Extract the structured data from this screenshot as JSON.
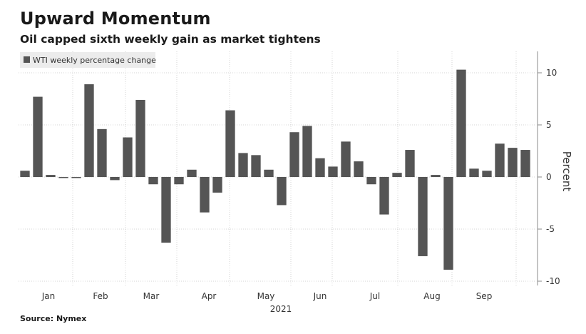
{
  "header": {
    "title": "Upward Momentum",
    "subtitle": "Oil capped sixth weekly gain as market tightens"
  },
  "footer": {
    "source": "Source: Nymex"
  },
  "colors": {
    "bar": "#555555",
    "grid": "#d4d4d4",
    "legend_bg": "#ececec"
  },
  "chart_data": {
    "type": "bar",
    "title": "Upward Momentum",
    "subtitle": "Oil capped sixth weekly gain as market tightens",
    "ylabel": "Percent",
    "ylim": [
      -10.5,
      12
    ],
    "y_ticks": [
      10,
      5,
      0,
      -5,
      -10
    ],
    "y_tick_labels": [
      "10",
      "5",
      "0",
      "-5",
      "-10"
    ],
    "y_axis_side": "right",
    "grid": true,
    "legend": {
      "position": "top-left",
      "entries": [
        "WTI weekly percentage change"
      ]
    },
    "x_month_labels": [
      "Jan",
      "Feb",
      "Mar",
      "Apr",
      "May",
      "Jun",
      "Jul",
      "Aug",
      "Sep"
    ],
    "x_year_label": "2021",
    "series": [
      {
        "name": "WTI weekly percentage change",
        "values": [
          0.6,
          7.7,
          0.2,
          -0.1,
          -0.1,
          8.9,
          4.6,
          -0.3,
          3.8,
          7.4,
          -0.7,
          -6.3,
          -0.7,
          0.7,
          -3.4,
          -1.5,
          6.4,
          2.3,
          2.1,
          0.7,
          -2.7,
          4.3,
          4.9,
          1.8,
          1.0,
          3.4,
          1.5,
          -0.7,
          -3.6,
          0.4,
          2.6,
          -7.6,
          0.2,
          -8.9,
          10.3,
          0.8,
          0.6,
          3.2,
          2.8,
          2.6
        ]
      }
    ]
  }
}
